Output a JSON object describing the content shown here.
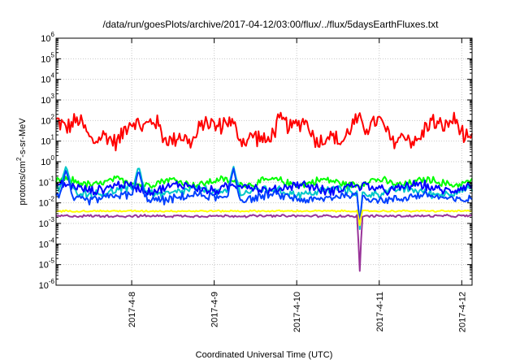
{
  "chart_data": {
    "type": "line",
    "title": "/data/run/goesPlots/archive/2017-04-12/03:00/flux/../flux/5daysEarthFluxes.txt",
    "xlabel": "Coordinated Universal Time (UTC)",
    "ylabel": "protons/cm2-s-sr-MeV",
    "ylabel_parts": {
      "main": "protons/cm",
      "sup": "2",
      "rest": "-s-sr-MeV"
    },
    "yscale": "log",
    "ylim_exponents": [
      -6,
      6
    ],
    "y_ticks": [
      {
        "exp": -6,
        "label": "10",
        "sup": "-6"
      },
      {
        "exp": -5,
        "label": "10",
        "sup": "-5"
      },
      {
        "exp": -4,
        "label": "10",
        "sup": "-4"
      },
      {
        "exp": -3,
        "label": "10",
        "sup": "-3"
      },
      {
        "exp": -2,
        "label": "10",
        "sup": "-2"
      },
      {
        "exp": -1,
        "label": "10",
        "sup": "-1"
      },
      {
        "exp": 0,
        "label": "10",
        "sup": "0"
      },
      {
        "exp": 1,
        "label": "10",
        "sup": "1"
      },
      {
        "exp": 2,
        "label": "10",
        "sup": "2"
      },
      {
        "exp": 3,
        "label": "10",
        "sup": "3"
      },
      {
        "exp": 4,
        "label": "10",
        "sup": "4"
      },
      {
        "exp": 5,
        "label": "10",
        "sup": "5"
      },
      {
        "exp": 6,
        "label": "10",
        "sup": "6"
      }
    ],
    "x_range_days": [
      "2017-04-07T02:00",
      "2017-04-12T03:00"
    ],
    "x_ticks": [
      "2017-4-8",
      "2017-4-9",
      "2017-4-10",
      "2017-4-11",
      "2017-4-12"
    ],
    "grid": true,
    "legend": "none",
    "series": [
      {
        "color": "#ff0000",
        "base": 30,
        "spread": 0.22,
        "waves": [
          [
            0.18,
            1.1,
            0.6
          ],
          [
            0.1,
            3.3,
            1.9
          ]
        ],
        "dips": []
      },
      {
        "color": "#00ff00",
        "base": 0.1,
        "spread": 0.09,
        "waves": [
          [
            0.05,
            1.6,
            0.3
          ]
        ],
        "dips": [
          [
            3.68,
            0.03,
            0.05
          ]
        ]
      },
      {
        "color": "#00c8c8",
        "base": 0.035,
        "spread": 0.1,
        "waves": [
          [
            0.05,
            1.2,
            1.2
          ]
        ],
        "dips": [
          [
            0.12,
            0.08,
            0.6
          ],
          [
            1.0,
            0.08,
            0.6
          ],
          [
            2.15,
            0.08,
            0.6
          ],
          [
            3.68,
            0.03,
            0.0005
          ]
        ]
      },
      {
        "color": "#0000ff",
        "base": 0.055,
        "spread": 0.11,
        "waves": [
          [
            0.06,
            1.4,
            0.8
          ]
        ],
        "dips": [
          [
            3.68,
            0.03,
            0.04
          ]
        ]
      },
      {
        "color": "#0040ff",
        "base": 0.018,
        "spread": 0.1,
        "waves": [
          [
            0.05,
            1.1,
            2.2
          ]
        ],
        "dips": [
          [
            0.12,
            0.08,
            0.4
          ],
          [
            1.0,
            0.08,
            0.4
          ],
          [
            2.15,
            0.08,
            0.5
          ],
          [
            3.68,
            0.03,
            0.001
          ]
        ]
      },
      {
        "color": "#ffff00",
        "base": 0.004,
        "spread": 0.02,
        "waves": [],
        "dips": [
          [
            3.68,
            0.03,
            0.0008
          ]
        ]
      },
      {
        "color": "#993399",
        "base": 0.0023,
        "spread": 0.03,
        "waves": [],
        "dips": [
          [
            3.68,
            0.03,
            4.5e-06
          ]
        ]
      }
    ]
  }
}
